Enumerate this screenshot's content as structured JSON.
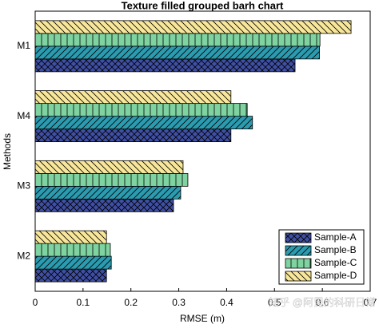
{
  "chart_data": {
    "type": "barh",
    "title": "Texture filled grouped barh chart",
    "x_label": "RMSE (m)",
    "y_label": "Methods",
    "categories": [
      "M1",
      "M4",
      "M3",
      "M2"
    ],
    "series": [
      {
        "name": "Sample-A",
        "color": "#3f4fa3",
        "hatch": "x",
        "values": [
          0.543,
          0.409,
          0.289,
          0.149
        ]
      },
      {
        "name": "Sample-B",
        "color": "#2b9bb0",
        "hatch": "/",
        "values": [
          0.594,
          0.454,
          0.304,
          0.159
        ]
      },
      {
        "name": "Sample-C",
        "color": "#7fd3a0",
        "hatch": "|",
        "values": [
          0.595,
          0.443,
          0.319,
          0.157
        ]
      },
      {
        "name": "Sample-D",
        "color": "#f8e79a",
        "hatch": "\\",
        "values": [
          0.66,
          0.409,
          0.309,
          0.149
        ]
      }
    ],
    "xlim": [
      0,
      0.7
    ],
    "xticks": [
      0,
      0.1,
      0.2,
      0.3,
      0.4,
      0.5,
      0.6,
      0.7
    ],
    "grid": false,
    "legend": "lower right",
    "watermark": "知乎 @阿昆的科研日常"
  }
}
